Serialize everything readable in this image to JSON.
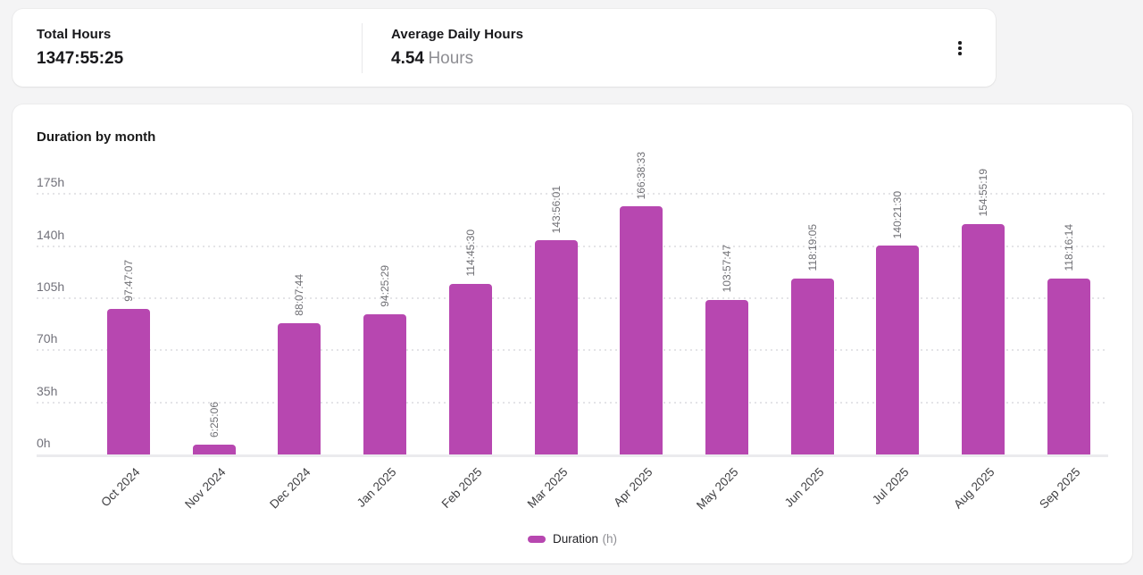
{
  "summary_card": {
    "stats": [
      {
        "label": "Total Hours",
        "value": "1347:55:25",
        "unit": ""
      },
      {
        "label": "Average Daily Hours",
        "value": "4.54",
        "unit": "Hours"
      }
    ],
    "menu_icon": "kebab-menu-icon"
  },
  "chart_card": {
    "title": "Duration by month",
    "legend": {
      "label": "Duration",
      "unit": "(h)"
    }
  },
  "colors": {
    "bar": "#b747b0",
    "page_background": "#f4f4f5",
    "card_background": "#ffffff",
    "gridline": "#e4e4e7",
    "tick_text": "#71717a",
    "value_label_text": "#6f6f74",
    "x_label_text": "#3f3f42"
  },
  "chart_data": {
    "type": "bar",
    "title": "Duration by month",
    "categories": [
      "Oct 2024",
      "Nov 2024",
      "Dec 2024",
      "Jan 2025",
      "Feb 2025",
      "Mar 2025",
      "Apr 2025",
      "May 2025",
      "Jun 2025",
      "Jul 2025",
      "Aug 2025",
      "Sep 2025"
    ],
    "series": [
      {
        "name": "Duration (h)",
        "values": [
          97.785,
          6.418,
          88.129,
          94.425,
          114.758,
          143.934,
          166.643,
          103.963,
          118.318,
          140.358,
          154.922,
          118.271
        ],
        "labels": [
          "97:47:07",
          "6:25:06",
          "88:07:44",
          "94:25:29",
          "114:45:30",
          "143:56:01",
          "166:38:33",
          "103:57:47",
          "118:19:05",
          "140:21:30",
          "154:55:19",
          "118:16:14"
        ]
      }
    ],
    "xlabel": "",
    "ylabel": "",
    "ylim": [
      0,
      175
    ],
    "yticks": [
      {
        "label": "0h",
        "value": 0
      },
      {
        "label": "35h",
        "value": 35
      },
      {
        "label": "70h",
        "value": 70
      },
      {
        "label": "105h",
        "value": 105
      },
      {
        "label": "140h",
        "value": 140
      },
      {
        "label": "175h",
        "value": 175
      }
    ],
    "grid": "horizontal-dotted",
    "legend_position": "bottom-center",
    "bar_color": "#b747b0"
  }
}
